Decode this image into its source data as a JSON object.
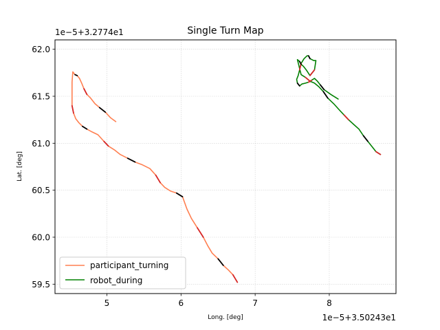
{
  "chart_data": {
    "type": "line",
    "title": "Single Turn Map",
    "xlabel": "Long. [deg]",
    "ylabel": "Lat. [deg]",
    "x_offset_label": "1e−5+3.50243e1",
    "y_offset_label": "1e−5+3.2774e1",
    "xlim": [
      4.3,
      8.9
    ],
    "ylim": [
      59.4,
      62.1
    ],
    "xticks": [
      5,
      6,
      7,
      8
    ],
    "xtick_labels": [
      "5",
      "6",
      "7",
      "8"
    ],
    "yticks": [
      59.5,
      60.0,
      60.5,
      61.0,
      61.5,
      62.0
    ],
    "ytick_labels": [
      "59.5",
      "60.0",
      "60.5",
      "61.0",
      "61.5",
      "62.0"
    ],
    "grid": true,
    "legend_position": "lower-left",
    "series": [
      {
        "name": "participant_turning",
        "color": "#ff7f50",
        "x": [
          5.12,
          5.05,
          4.98,
          4.9,
          4.84,
          4.78,
          4.73,
          4.69,
          4.66,
          4.63,
          4.6,
          4.57,
          4.54,
          4.53,
          4.53,
          4.55,
          4.58,
          4.62,
          4.67,
          4.73,
          4.8,
          4.88,
          4.96,
          5.02,
          5.1,
          5.18,
          5.28,
          5.38,
          5.48,
          5.58,
          5.66,
          5.72,
          5.78,
          5.86,
          5.94,
          6.02,
          6.08,
          6.14,
          6.22,
          6.3,
          6.36,
          6.42,
          6.5,
          6.57,
          6.64,
          6.7,
          6.76
        ],
        "y": [
          61.23,
          61.27,
          61.33,
          61.38,
          61.42,
          61.48,
          61.52,
          61.58,
          61.64,
          61.69,
          61.72,
          61.73,
          61.76,
          61.65,
          61.4,
          61.32,
          61.26,
          61.22,
          61.18,
          61.15,
          61.12,
          61.09,
          61.02,
          60.97,
          60.93,
          60.88,
          60.84,
          60.8,
          60.77,
          60.73,
          60.66,
          60.58,
          60.53,
          60.49,
          60.47,
          60.43,
          60.3,
          60.2,
          60.1,
          60.0,
          59.91,
          59.83,
          59.77,
          59.7,
          59.65,
          59.6,
          59.52
        ]
      },
      {
        "name": "robot_during",
        "color": "#008000",
        "x": [
          8.12,
          8.02,
          7.93,
          7.88,
          7.84,
          7.8,
          7.76,
          7.72,
          7.68,
          7.63,
          7.6,
          7.57,
          7.56,
          7.58,
          7.6,
          7.62,
          7.66,
          7.7,
          7.72,
          7.74,
          7.79,
          7.82,
          7.8,
          7.74,
          7.69,
          7.65,
          7.62,
          7.6,
          7.57,
          7.62,
          7.68,
          7.74,
          7.8,
          7.86,
          7.92,
          7.98,
          8.06,
          8.14,
          8.2,
          8.26,
          8.33,
          8.4,
          8.46,
          8.52,
          8.58,
          8.63,
          8.69
        ],
        "y": [
          61.47,
          61.52,
          61.57,
          61.62,
          61.66,
          61.69,
          61.67,
          61.65,
          61.64,
          61.63,
          61.61,
          61.64,
          61.68,
          61.72,
          61.78,
          61.85,
          61.9,
          61.93,
          61.93,
          61.9,
          61.88,
          61.88,
          61.78,
          61.72,
          61.78,
          61.82,
          61.84,
          61.87,
          61.89,
          61.73,
          61.7,
          61.66,
          61.64,
          61.6,
          61.55,
          61.48,
          61.42,
          61.35,
          61.3,
          61.25,
          61.2,
          61.15,
          61.08,
          61.02,
          60.96,
          60.91,
          60.88
        ]
      }
    ]
  }
}
